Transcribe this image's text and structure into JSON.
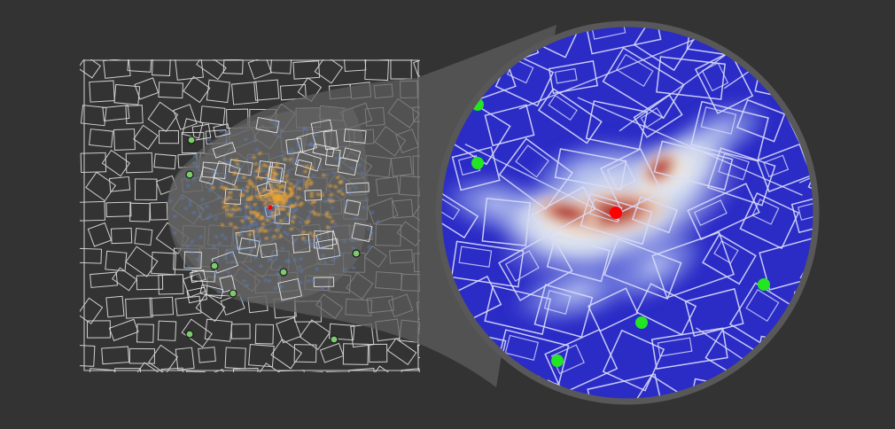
{
  "figure": {
    "background": "#333333",
    "street_color": "#d0d0d0",
    "magnifier_fill": "#5e5e5e",
    "magnifier_ring": "#585858",
    "highlight_fill": "#6a6a6a"
  },
  "legend_colors": {
    "low_density_cases": "#5a82c8",
    "high_density_cases": "#e8a33a",
    "pumps": "#7ccc6c",
    "pump_outline": "#1a1a1a",
    "infected_pump": "#ff0000",
    "zoom_pumps": "#22e622",
    "heat_low": "#2828c8",
    "heat_mid": "#f0ece0",
    "heat_high": "#a02020"
  },
  "markers": {
    "pumps_in_overview": 8,
    "infected_pump_count": 1,
    "pumps_in_zoom": 6
  }
}
